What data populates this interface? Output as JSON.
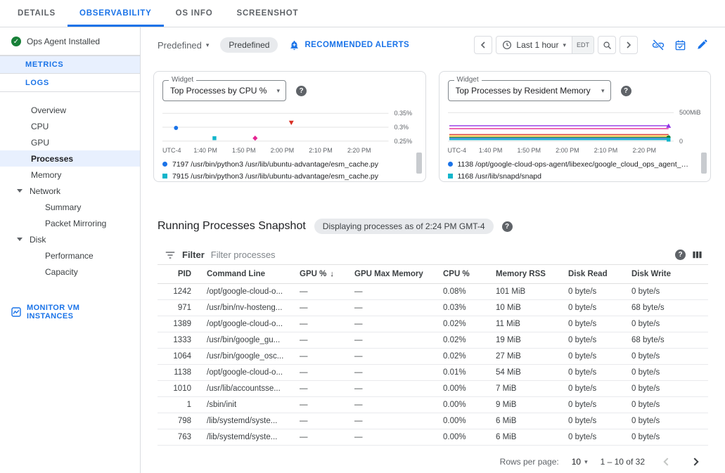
{
  "tabs": [
    {
      "label": "DETAILS",
      "active": false
    },
    {
      "label": "OBSERVABILITY",
      "active": true
    },
    {
      "label": "OS INFO",
      "active": false
    },
    {
      "label": "SCREENSHOT",
      "active": false
    }
  ],
  "sidebar": {
    "agent_status": "Ops Agent Installed",
    "metrics_label": "METRICS",
    "logs_label": "LOGS",
    "nav": [
      {
        "label": "Overview",
        "type": "item",
        "selected": false
      },
      {
        "label": "CPU",
        "type": "item",
        "selected": false
      },
      {
        "label": "GPU",
        "type": "item",
        "selected": false
      },
      {
        "label": "Processes",
        "type": "item",
        "selected": true
      },
      {
        "label": "Memory",
        "type": "item",
        "selected": false
      },
      {
        "label": "Network",
        "type": "group",
        "selected": false
      },
      {
        "label": "Summary",
        "type": "child",
        "selected": false
      },
      {
        "label": "Packet Mirroring",
        "type": "child",
        "selected": false
      },
      {
        "label": "Disk",
        "type": "group",
        "selected": false
      },
      {
        "label": "Performance",
        "type": "child",
        "selected": false
      },
      {
        "label": "Capacity",
        "type": "child",
        "selected": false
      }
    ],
    "monitor_link": "MONITOR VM INSTANCES"
  },
  "toolbar": {
    "predefined_dropdown": "Predefined",
    "predefined_chip": "Predefined",
    "recommended_alerts": "RECOMMENDED ALERTS",
    "time_range": "Last 1 hour",
    "timezone": "EDT"
  },
  "widgets": [
    {
      "widget_label": "Widget",
      "title": "Top Processes by CPU %",
      "chart": {
        "type": "scatter",
        "gridlines": [
          0.12,
          0.5,
          0.88
        ],
        "y_labels": [
          {
            "text": "0.35%",
            "y": 0.12
          },
          {
            "text": "0.3%",
            "y": 0.5
          },
          {
            "text": "0.25%",
            "y": 0.88
          }
        ],
        "points": [
          {
            "marker": "circle",
            "color": "#1a73e8",
            "x": 0.06,
            "y": 0.52
          },
          {
            "marker": "square",
            "color": "#12b5cb",
            "x": 0.23,
            "y": 0.8
          },
          {
            "marker": "diamond",
            "color": "#e52592",
            "x": 0.41,
            "y": 0.8
          },
          {
            "marker": "triangle-down",
            "color": "#d93025",
            "x": 0.57,
            "y": 0.38
          }
        ],
        "x_ticks": [
          "UTC-4",
          "1:40 PM",
          "1:50 PM",
          "2:00 PM",
          "2:10 PM",
          "2:20 PM"
        ],
        "x_positions": [
          0,
          0.19,
          0.36,
          0.53,
          0.7,
          0.87
        ],
        "legend": [
          {
            "shape": "circle",
            "color": "#1a73e8",
            "label": "7197 /usr/bin/python3 /usr/lib/ubuntu-advantage/esm_cache.py"
          },
          {
            "shape": "square",
            "color": "#12b5cb",
            "label": "7915 /usr/bin/python3 /usr/lib/ubuntu-advantage/esm_cache.py"
          }
        ]
      }
    },
    {
      "widget_label": "Widget",
      "title": "Top Processes by Resident Memory",
      "chart": {
        "type": "line",
        "gridlines": [
          0.1,
          0.88
        ],
        "y_labels": [
          {
            "text": "500MiB",
            "y": 0.1
          },
          {
            "text": "0",
            "y": 0.88
          }
        ],
        "lines": [
          {
            "color": "#9334e6",
            "y": 0.46,
            "marker": "triangle-up"
          },
          {
            "color": "#e52592",
            "y": 0.54
          },
          {
            "color": "#d93025",
            "y": 0.7
          },
          {
            "color": "#f9ab00",
            "y": 0.74
          },
          {
            "color": "#188038",
            "y": 0.78,
            "marker": "circle"
          },
          {
            "color": "#1a73e8",
            "y": 0.81
          },
          {
            "color": "#12b5cb",
            "y": 0.84,
            "marker": "square"
          }
        ],
        "x_ticks": [
          "UTC-4",
          "1:40 PM",
          "1:50 PM",
          "2:00 PM",
          "2:10 PM",
          "2:20 PM"
        ],
        "x_positions": [
          0,
          0.19,
          0.36,
          0.53,
          0.7,
          0.87
        ],
        "legend": [
          {
            "shape": "circle",
            "color": "#1a73e8",
            "label": "1138 /opt/google-cloud-ops-agent/libexec/google_cloud_ops_agent_dia..."
          },
          {
            "shape": "square",
            "color": "#12b5cb",
            "label": "1168 /usr/lib/snapd/snapd"
          }
        ]
      }
    }
  ],
  "snapshot": {
    "title": "Running Processes Snapshot",
    "chip": "Displaying processes as of 2:24 PM GMT-4"
  },
  "table": {
    "filter_label": "Filter",
    "filter_placeholder": "Filter processes",
    "columns": [
      {
        "label": "PID",
        "sort": false
      },
      {
        "label": "Command Line",
        "sort": false
      },
      {
        "label": "GPU %",
        "sort": true
      },
      {
        "label": "GPU Max Memory",
        "sort": false
      },
      {
        "label": "CPU %",
        "sort": false
      },
      {
        "label": "Memory RSS",
        "sort": false
      },
      {
        "label": "Disk Read",
        "sort": false
      },
      {
        "label": "Disk Write",
        "sort": false
      }
    ],
    "rows": [
      [
        "1242",
        "/opt/google-cloud-o...",
        "—",
        "—",
        "0.08%",
        "101 MiB",
        "0 byte/s",
        "0 byte/s"
      ],
      [
        "971",
        "/usr/bin/nv-hosteng...",
        "—",
        "—",
        "0.03%",
        "10 MiB",
        "0 byte/s",
        "68 byte/s"
      ],
      [
        "1389",
        "/opt/google-cloud-o...",
        "—",
        "—",
        "0.02%",
        "11 MiB",
        "0 byte/s",
        "0 byte/s"
      ],
      [
        "1333",
        "/usr/bin/google_gu...",
        "—",
        "—",
        "0.02%",
        "19 MiB",
        "0 byte/s",
        "68 byte/s"
      ],
      [
        "1064",
        "/usr/bin/google_osc...",
        "—",
        "—",
        "0.02%",
        "27 MiB",
        "0 byte/s",
        "0 byte/s"
      ],
      [
        "1138",
        "/opt/google-cloud-o...",
        "—",
        "—",
        "0.01%",
        "54 MiB",
        "0 byte/s",
        "0 byte/s"
      ],
      [
        "1010",
        "/usr/lib/accountsse...",
        "—",
        "—",
        "0.00%",
        "7 MiB",
        "0 byte/s",
        "0 byte/s"
      ],
      [
        "1",
        "/sbin/init",
        "—",
        "—",
        "0.00%",
        "9 MiB",
        "0 byte/s",
        "0 byte/s"
      ],
      [
        "798",
        "/lib/systemd/syste...",
        "—",
        "—",
        "0.00%",
        "6 MiB",
        "0 byte/s",
        "0 byte/s"
      ],
      [
        "763",
        "/lib/systemd/syste...",
        "—",
        "—",
        "0.00%",
        "6 MiB",
        "0 byte/s",
        "0 byte/s"
      ]
    ]
  },
  "pagination": {
    "rows_per_page_label": "Rows per page:",
    "rows_per_page": "10",
    "range": "1 – 10 of 32"
  },
  "colors": {
    "accent": "#1a73e8",
    "success_green": "#188038",
    "text_secondary": "#5f6368",
    "border": "#dadce0",
    "selected_bg": "#e8f0fe"
  }
}
